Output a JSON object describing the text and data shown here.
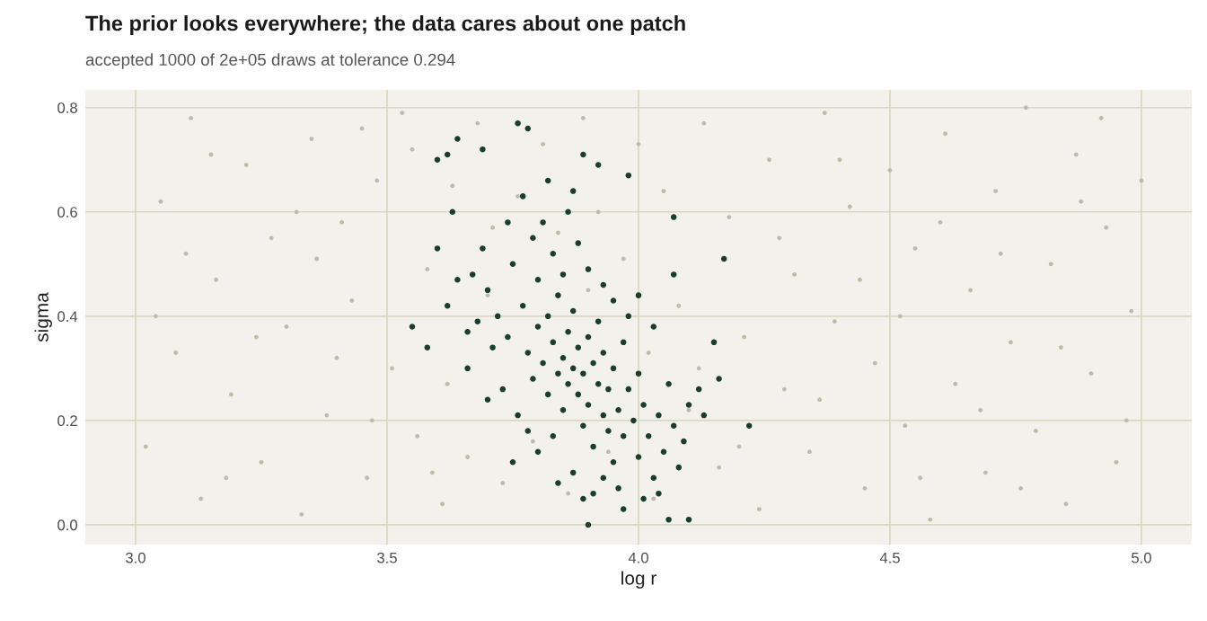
{
  "chart_data": {
    "type": "scatter",
    "title": "The prior looks everywhere; the data cares about one patch",
    "subtitle": "accepted 1000 of 2e+05 draws at tolerance 0.294",
    "xlabel": "log r",
    "ylabel": "sigma",
    "xlim": [
      2.9,
      5.1
    ],
    "xticks": [
      {
        "value": 3,
        "label": "3.0"
      },
      3.5,
      {
        "value": 4,
        "label": "4.0"
      },
      4.5,
      {
        "value": 5,
        "label": "5.0"
      }
    ],
    "ylim": [
      -0.038,
      0.834
    ],
    "yticks": [
      {
        "value": 0,
        "label": "0.0"
      },
      0.2,
      0.4,
      0.6,
      0.8
    ],
    "grid": true,
    "marker": "circle",
    "series": [
      {
        "color": "#bdbca8",
        "x": [
          3.02,
          3.05,
          3.08,
          3.11,
          3.13,
          3.16,
          3.19,
          3.22,
          3.25,
          3.27,
          3.3,
          3.33,
          3.35,
          3.38,
          3.41,
          3.43,
          3.46,
          3.48,
          3.51,
          3.53,
          3.56,
          3.58,
          3.61,
          3.63,
          3.66,
          3.68,
          3.71,
          3.73,
          3.76,
          3.79,
          3.81,
          3.84,
          3.86,
          3.89,
          3.92,
          3.94,
          3.97,
          4.0,
          4.03,
          4.05,
          4.08,
          4.1,
          4.13,
          4.16,
          4.18,
          4.21,
          4.24,
          4.26,
          4.29,
          4.31,
          4.34,
          4.37,
          4.39,
          4.42,
          4.45,
          4.47,
          4.5,
          4.53,
          4.55,
          4.58,
          4.61,
          4.63,
          4.66,
          4.69,
          4.71,
          4.74,
          4.77,
          4.79,
          4.82,
          4.85,
          4.87,
          4.9,
          4.93,
          4.95,
          4.98,
          5.0,
          3.04,
          3.1,
          3.18,
          3.24,
          3.32,
          3.4,
          3.47,
          3.55,
          3.62,
          3.7,
          3.9,
          4.02,
          4.12,
          4.2,
          4.28,
          4.36,
          4.44,
          4.52,
          4.6,
          4.68,
          4.76,
          4.84,
          4.92,
          4.97,
          3.15,
          3.36,
          3.45,
          3.59,
          4.4,
          4.56,
          4.72,
          4.88
        ],
        "values": [
          0.15,
          0.62,
          0.33,
          0.78,
          0.05,
          0.47,
          0.25,
          0.69,
          0.12,
          0.55,
          0.38,
          0.02,
          0.74,
          0.21,
          0.58,
          0.43,
          0.09,
          0.66,
          0.3,
          0.79,
          0.17,
          0.49,
          0.04,
          0.65,
          0.13,
          0.77,
          0.57,
          0.08,
          0.63,
          0.16,
          0.73,
          0.56,
          0.06,
          0.78,
          0.6,
          0.14,
          0.51,
          0.73,
          0.05,
          0.64,
          0.42,
          0.22,
          0.77,
          0.11,
          0.59,
          0.36,
          0.03,
          0.7,
          0.26,
          0.48,
          0.14,
          0.79,
          0.39,
          0.61,
          0.07,
          0.31,
          0.68,
          0.19,
          0.53,
          0.01,
          0.75,
          0.27,
          0.45,
          0.1,
          0.64,
          0.35,
          0.8,
          0.18,
          0.5,
          0.04,
          0.71,
          0.29,
          0.57,
          0.12,
          0.41,
          0.66,
          0.4,
          0.52,
          0.09,
          0.36,
          0.6,
          0.32,
          0.2,
          0.72,
          0.27,
          0.44,
          0.45,
          0.33,
          0.3,
          0.15,
          0.55,
          0.24,
          0.47,
          0.4,
          0.58,
          0.22,
          0.07,
          0.34,
          0.78,
          0.2,
          0.71,
          0.51,
          0.76,
          0.1,
          0.7,
          0.09,
          0.52,
          0.62
        ]
      },
      {
        "color": "#1b3d2b",
        "x": [
          3.6,
          3.62,
          3.64,
          3.69,
          3.76,
          3.78,
          3.89,
          3.92,
          3.98,
          3.55,
          3.58,
          4.22,
          4.17,
          4.07,
          4.1,
          4.06,
          3.9,
          3.89,
          3.97,
          4.15,
          4.16,
          4.12,
          4.13,
          4.07,
          3.63,
          3.6,
          3.66,
          3.7,
          3.7,
          3.72,
          3.74,
          3.75,
          3.77,
          3.78,
          3.79,
          3.8,
          3.8,
          3.81,
          3.82,
          3.82,
          3.83,
          3.84,
          3.84,
          3.85,
          3.85,
          3.86,
          3.86,
          3.87,
          3.87,
          3.88,
          3.88,
          3.89,
          3.89,
          3.9,
          3.9,
          3.91,
          3.91,
          3.92,
          3.92,
          3.93,
          3.93,
          3.94,
          3.94,
          3.95,
          3.95,
          3.96,
          3.97,
          3.97,
          3.98,
          3.99,
          4.0,
          4.0,
          4.01,
          4.02,
          4.03,
          4.03,
          4.04,
          4.05,
          4.06,
          4.07,
          4.08,
          3.68,
          3.67,
          3.71,
          3.73,
          3.76,
          3.78,
          3.79,
          3.81,
          3.83,
          3.85,
          3.86,
          3.88,
          3.9,
          3.93,
          3.95,
          3.98,
          4.0,
          3.62,
          3.64,
          3.66,
          3.69,
          3.74,
          3.77,
          3.82,
          3.87,
          3.84,
          3.87,
          3.91,
          3.93,
          3.96,
          4.01,
          4.04,
          3.8,
          3.75,
          3.83,
          4.09,
          4.1
        ],
        "values": [
          0.7,
          0.71,
          0.74,
          0.72,
          0.77,
          0.76,
          0.71,
          0.69,
          0.67,
          0.38,
          0.34,
          0.19,
          0.51,
          0.59,
          0.01,
          0.01,
          0.0,
          0.05,
          0.03,
          0.35,
          0.28,
          0.26,
          0.21,
          0.48,
          0.6,
          0.53,
          0.3,
          0.24,
          0.45,
          0.4,
          0.36,
          0.5,
          0.42,
          0.33,
          0.28,
          0.38,
          0.47,
          0.31,
          0.25,
          0.4,
          0.35,
          0.29,
          0.44,
          0.32,
          0.22,
          0.37,
          0.27,
          0.3,
          0.41,
          0.25,
          0.34,
          0.19,
          0.29,
          0.36,
          0.23,
          0.31,
          0.15,
          0.27,
          0.39,
          0.21,
          0.33,
          0.18,
          0.26,
          0.3,
          0.12,
          0.22,
          0.35,
          0.17,
          0.26,
          0.2,
          0.13,
          0.29,
          0.23,
          0.17,
          0.38,
          0.09,
          0.21,
          0.14,
          0.27,
          0.19,
          0.11,
          0.39,
          0.48,
          0.34,
          0.26,
          0.21,
          0.18,
          0.55,
          0.58,
          0.52,
          0.48,
          0.6,
          0.54,
          0.49,
          0.46,
          0.43,
          0.4,
          0.44,
          0.42,
          0.47,
          0.37,
          0.53,
          0.58,
          0.63,
          0.66,
          0.64,
          0.08,
          0.1,
          0.06,
          0.09,
          0.07,
          0.05,
          0.06,
          0.14,
          0.12,
          0.17,
          0.16,
          0.23
        ]
      }
    ]
  }
}
